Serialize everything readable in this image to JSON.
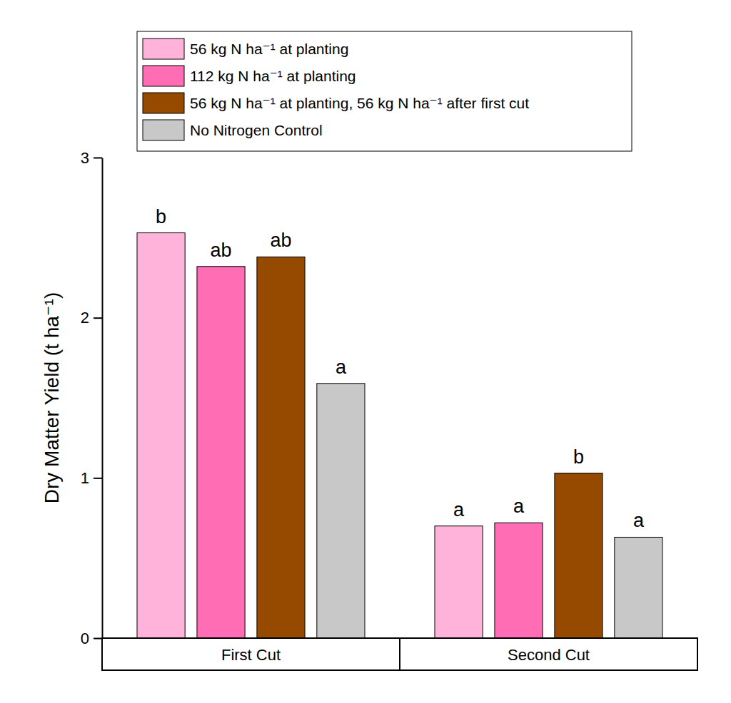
{
  "chart_data": {
    "type": "bar",
    "categories": [
      "First Cut",
      "Second Cut"
    ],
    "series": [
      {
        "name": "56 kg N ha⁻¹ at planting",
        "color": "#ffb3da",
        "values": [
          2.53,
          0.7
        ],
        "letters": [
          "b",
          "a"
        ]
      },
      {
        "name": "112 kg N ha⁻¹ at planting",
        "color": "#ff6eb4",
        "values": [
          2.32,
          0.72
        ],
        "letters": [
          "ab",
          "a"
        ]
      },
      {
        "name": "56 kg N ha⁻¹ at planting, 56 kg N ha⁻¹ after first cut",
        "color": "#954a00",
        "values": [
          2.38,
          1.03
        ],
        "letters": [
          "ab",
          "b"
        ]
      },
      {
        "name": "No Nitrogen Control",
        "color": "#c8c8c8",
        "values": [
          1.59,
          0.63
        ],
        "letters": [
          "a",
          "a"
        ]
      }
    ],
    "y_label": "Dry Matter Yield (t ha⁻¹)",
    "ylim": [
      0,
      3
    ],
    "yticks": [
      0,
      1,
      2,
      3
    ],
    "legend": "top"
  }
}
